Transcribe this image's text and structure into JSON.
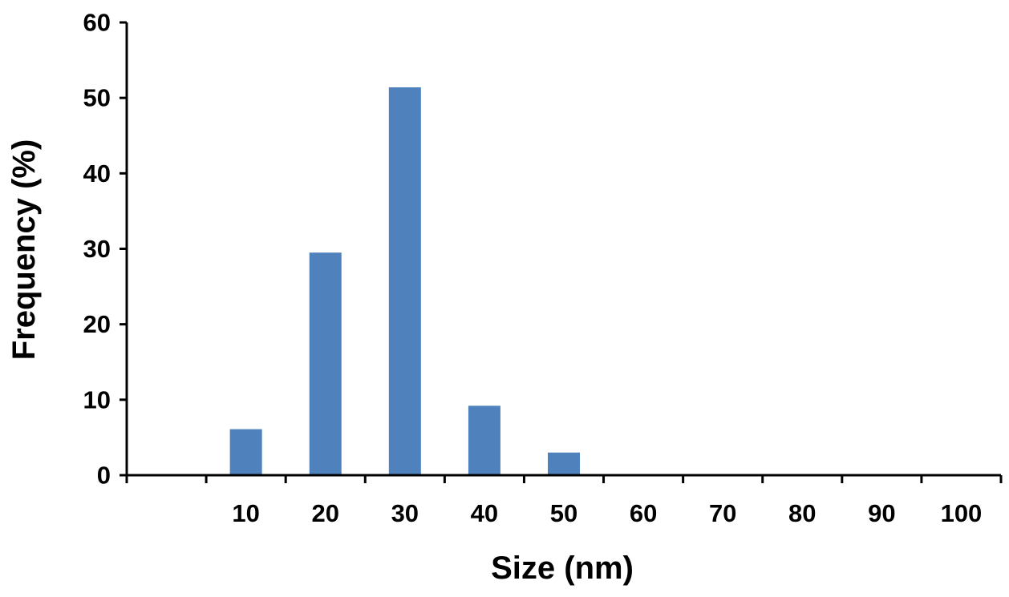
{
  "chart_data": {
    "type": "bar",
    "title": "",
    "xlabel": "Size (nm)",
    "ylabel": "Frequency (%)",
    "categories": [
      "",
      "10",
      "20",
      "30",
      "40",
      "50",
      "60",
      "70",
      "80",
      "90",
      "100"
    ],
    "values": [
      0,
      6.1,
      29.5,
      51.4,
      9.2,
      3.0,
      0,
      0,
      0,
      0,
      0
    ],
    "ylim": [
      0,
      60
    ],
    "yticks": [
      "0",
      "10",
      "20",
      "30",
      "40",
      "50",
      "60"
    ],
    "grid": false,
    "legend": "none",
    "bar_color": "#4f81bd",
    "axis_color": "#000000"
  }
}
